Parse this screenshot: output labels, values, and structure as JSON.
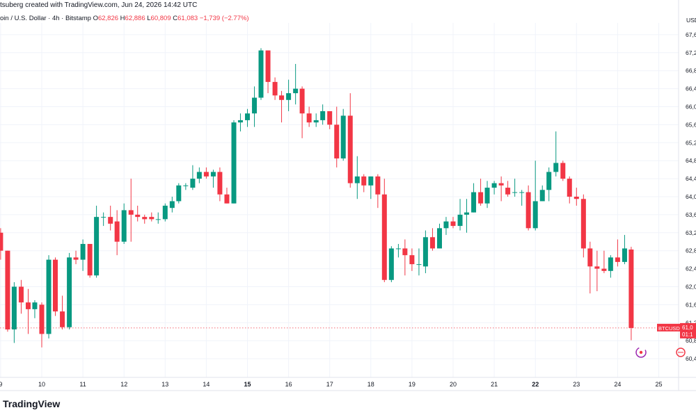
{
  "header": {
    "created_line": "tsuberg created with TradingView.com, Jun 24, 2026 14:42 UTC",
    "symbol_line": "oin / U.S. Dollar · 4h · Bitstamp",
    "o_label": "O",
    "o_value": "62,826",
    "h_label": "H",
    "h_value": "62,886",
    "l_label": "L",
    "l_value": "60,809",
    "c_label": "C",
    "c_value": "61,083",
    "change": "−1,739 (−2.77%)"
  },
  "axis": {
    "currency": "USD"
  },
  "price_tag": {
    "symbol": "BTCUSD",
    "price": "61,0",
    "countdown": "01:1"
  },
  "branding": {
    "logo_text": "TradingView"
  },
  "colors": {
    "up": "#089981",
    "down": "#f23645",
    "grid": "#f0f3fa",
    "text": "#131722"
  },
  "icons": [
    "chart-replay-icon",
    "chart-settings-icon"
  ],
  "chart_data": {
    "type": "candlestick",
    "timeframe": "4h",
    "ylim": [
      60200,
      67800
    ],
    "last_price": 61083,
    "y_ticks": [
      "60,4",
      "60,8",
      "61,2",
      "61,6",
      "62,0",
      "62,4",
      "62,8",
      "63,2",
      "63,6",
      "64,0",
      "64,4",
      "64,8",
      "65,2",
      "65,6",
      "66,0",
      "66,4",
      "66,8",
      "67,2",
      "67,6"
    ],
    "y_tick_values": [
      60400,
      60800,
      61200,
      61600,
      62000,
      62400,
      62800,
      63200,
      63600,
      64000,
      64400,
      64800,
      65200,
      65600,
      66000,
      66400,
      66800,
      67200,
      67600
    ],
    "x_ticks": [
      {
        "label": "9",
        "day": 9,
        "bold": false
      },
      {
        "label": "10",
        "day": 10,
        "bold": false
      },
      {
        "label": "11",
        "day": 11,
        "bold": false
      },
      {
        "label": "12",
        "day": 12,
        "bold": false
      },
      {
        "label": "13",
        "day": 13,
        "bold": false
      },
      {
        "label": "14",
        "day": 14,
        "bold": false
      },
      {
        "label": "15",
        "day": 15,
        "bold": true
      },
      {
        "label": "16",
        "day": 16,
        "bold": false
      },
      {
        "label": "17",
        "day": 17,
        "bold": false
      },
      {
        "label": "18",
        "day": 18,
        "bold": false
      },
      {
        "label": "19",
        "day": 19,
        "bold": false
      },
      {
        "label": "20",
        "day": 20,
        "bold": false
      },
      {
        "label": "21",
        "day": 21,
        "bold": false
      },
      {
        "label": "22",
        "day": 22,
        "bold": true
      },
      {
        "label": "23",
        "day": 23,
        "bold": false
      },
      {
        "label": "24",
        "day": 24,
        "bold": false
      },
      {
        "label": "25",
        "day": 25,
        "bold": false
      }
    ],
    "candles": [
      {
        "day": 8.83,
        "o": 62850,
        "h": 63250,
        "l": 62700,
        "c": 63100
      },
      {
        "day": 9.0,
        "o": 63200,
        "h": 63300,
        "l": 62600,
        "c": 62800
      },
      {
        "day": 9.17,
        "o": 62800,
        "h": 62800,
        "l": 61000,
        "c": 61050
      },
      {
        "day": 9.33,
        "o": 61050,
        "h": 62100,
        "l": 60750,
        "c": 62000
      },
      {
        "day": 9.5,
        "o": 62000,
        "h": 62150,
        "l": 61400,
        "c": 61650
      },
      {
        "day": 9.67,
        "o": 61650,
        "h": 61950,
        "l": 60950,
        "c": 61500
      },
      {
        "day": 9.83,
        "o": 61500,
        "h": 61700,
        "l": 61300,
        "c": 61650
      },
      {
        "day": 10.0,
        "o": 61600,
        "h": 61650,
        "l": 60650,
        "c": 60950
      },
      {
        "day": 10.17,
        "o": 60950,
        "h": 62700,
        "l": 60850,
        "c": 62600
      },
      {
        "day": 10.33,
        "o": 62600,
        "h": 62650,
        "l": 61350,
        "c": 61450
      },
      {
        "day": 10.5,
        "o": 61450,
        "h": 61800,
        "l": 61050,
        "c": 61100
      },
      {
        "day": 10.67,
        "o": 61100,
        "h": 62750,
        "l": 61050,
        "c": 62650
      },
      {
        "day": 10.83,
        "o": 62650,
        "h": 62800,
        "l": 62500,
        "c": 62600
      },
      {
        "day": 11.0,
        "o": 62600,
        "h": 63050,
        "l": 62350,
        "c": 62950
      },
      {
        "day": 11.17,
        "o": 62950,
        "h": 62950,
        "l": 62200,
        "c": 62250
      },
      {
        "day": 11.33,
        "o": 62250,
        "h": 63800,
        "l": 62200,
        "c": 63550
      },
      {
        "day": 11.5,
        "o": 63550,
        "h": 63650,
        "l": 63350,
        "c": 63550
      },
      {
        "day": 11.67,
        "o": 63550,
        "h": 63800,
        "l": 63250,
        "c": 63400
      },
      {
        "day": 11.83,
        "o": 63450,
        "h": 63700,
        "l": 62700,
        "c": 63000
      },
      {
        "day": 12.0,
        "o": 63000,
        "h": 63850,
        "l": 62950,
        "c": 63700
      },
      {
        "day": 12.17,
        "o": 63700,
        "h": 64400,
        "l": 63000,
        "c": 63600
      },
      {
        "day": 12.33,
        "o": 63600,
        "h": 63800,
        "l": 63450,
        "c": 63550
      },
      {
        "day": 12.5,
        "o": 63550,
        "h": 63600,
        "l": 63400,
        "c": 63500
      },
      {
        "day": 12.67,
        "o": 63550,
        "h": 63650,
        "l": 63450,
        "c": 63500
      },
      {
        "day": 12.83,
        "o": 63500,
        "h": 63650,
        "l": 63400,
        "c": 63500
      },
      {
        "day": 13.0,
        "o": 63500,
        "h": 63850,
        "l": 63450,
        "c": 63800
      },
      {
        "day": 13.17,
        "o": 63750,
        "h": 64000,
        "l": 63650,
        "c": 63900
      },
      {
        "day": 13.33,
        "o": 63900,
        "h": 64300,
        "l": 63850,
        "c": 64250
      },
      {
        "day": 13.5,
        "o": 64250,
        "h": 64300,
        "l": 64150,
        "c": 64250
      },
      {
        "day": 13.67,
        "o": 64200,
        "h": 64700,
        "l": 64150,
        "c": 64400
      },
      {
        "day": 13.83,
        "o": 64400,
        "h": 64650,
        "l": 64300,
        "c": 64550
      },
      {
        "day": 14.0,
        "o": 64550,
        "h": 64650,
        "l": 64400,
        "c": 64450
      },
      {
        "day": 14.17,
        "o": 64450,
        "h": 64600,
        "l": 64200,
        "c": 64550
      },
      {
        "day": 14.33,
        "o": 64550,
        "h": 64650,
        "l": 63900,
        "c": 64050
      },
      {
        "day": 14.5,
        "o": 64050,
        "h": 64200,
        "l": 63850,
        "c": 63850
      },
      {
        "day": 14.67,
        "o": 63850,
        "h": 65700,
        "l": 63850,
        "c": 65650
      },
      {
        "day": 14.83,
        "o": 65650,
        "h": 65850,
        "l": 65450,
        "c": 65700
      },
      {
        "day": 15.0,
        "o": 65700,
        "h": 65950,
        "l": 65550,
        "c": 65850
      },
      {
        "day": 15.17,
        "o": 65850,
        "h": 66450,
        "l": 65550,
        "c": 66200
      },
      {
        "day": 15.33,
        "o": 66200,
        "h": 67300,
        "l": 66150,
        "c": 67250
      },
      {
        "day": 15.5,
        "o": 67250,
        "h": 67250,
        "l": 66300,
        "c": 66550
      },
      {
        "day": 15.67,
        "o": 66550,
        "h": 66650,
        "l": 66150,
        "c": 66250
      },
      {
        "day": 15.83,
        "o": 66250,
        "h": 66350,
        "l": 65650,
        "c": 66150
      },
      {
        "day": 16.0,
        "o": 66150,
        "h": 66600,
        "l": 65900,
        "c": 66300
      },
      {
        "day": 16.17,
        "o": 66300,
        "h": 66950,
        "l": 66050,
        "c": 66400
      },
      {
        "day": 16.33,
        "o": 66400,
        "h": 66450,
        "l": 65300,
        "c": 65850
      },
      {
        "day": 16.5,
        "o": 65850,
        "h": 66000,
        "l": 65550,
        "c": 65650
      },
      {
        "day": 16.67,
        "o": 65650,
        "h": 65850,
        "l": 65550,
        "c": 65700
      },
      {
        "day": 16.83,
        "o": 65700,
        "h": 66050,
        "l": 65600,
        "c": 65900
      },
      {
        "day": 17.0,
        "o": 65900,
        "h": 65900,
        "l": 65500,
        "c": 65600
      },
      {
        "day": 17.17,
        "o": 65600,
        "h": 66000,
        "l": 64650,
        "c": 64850
      },
      {
        "day": 17.33,
        "o": 64850,
        "h": 65950,
        "l": 64800,
        "c": 65800
      },
      {
        "day": 17.5,
        "o": 65800,
        "h": 66300,
        "l": 64200,
        "c": 64300
      },
      {
        "day": 17.67,
        "o": 64300,
        "h": 64900,
        "l": 63950,
        "c": 64450
      },
      {
        "day": 17.83,
        "o": 64450,
        "h": 64500,
        "l": 64100,
        "c": 64250
      },
      {
        "day": 18.0,
        "o": 64250,
        "h": 64450,
        "l": 63950,
        "c": 64450
      },
      {
        "day": 18.17,
        "o": 64450,
        "h": 64500,
        "l": 63750,
        "c": 64050
      },
      {
        "day": 18.33,
        "o": 64050,
        "h": 64400,
        "l": 62100,
        "c": 62150
      },
      {
        "day": 18.5,
        "o": 62150,
        "h": 62900,
        "l": 62100,
        "c": 62850
      },
      {
        "day": 18.67,
        "o": 62850,
        "h": 62950,
        "l": 62650,
        "c": 62850
      },
      {
        "day": 18.83,
        "o": 62850,
        "h": 63050,
        "l": 62250,
        "c": 62700
      },
      {
        "day": 19.0,
        "o": 62700,
        "h": 62850,
        "l": 62350,
        "c": 62500
      },
      {
        "day": 19.17,
        "o": 62500,
        "h": 62850,
        "l": 62250,
        "c": 62500
      },
      {
        "day": 19.33,
        "o": 62450,
        "h": 63250,
        "l": 62300,
        "c": 63100
      },
      {
        "day": 19.5,
        "o": 63100,
        "h": 63300,
        "l": 62800,
        "c": 62850
      },
      {
        "day": 19.67,
        "o": 62850,
        "h": 63400,
        "l": 62850,
        "c": 63300
      },
      {
        "day": 19.83,
        "o": 63300,
        "h": 63550,
        "l": 63150,
        "c": 63450
      },
      {
        "day": 20.0,
        "o": 63450,
        "h": 63550,
        "l": 63300,
        "c": 63350
      },
      {
        "day": 20.17,
        "o": 63350,
        "h": 63950,
        "l": 63250,
        "c": 63600
      },
      {
        "day": 20.33,
        "o": 63600,
        "h": 63950,
        "l": 63200,
        "c": 63650
      },
      {
        "day": 20.5,
        "o": 63650,
        "h": 64300,
        "l": 63650,
        "c": 64100
      },
      {
        "day": 20.67,
        "o": 64100,
        "h": 64400,
        "l": 63800,
        "c": 63850
      },
      {
        "day": 20.83,
        "o": 63850,
        "h": 64350,
        "l": 63750,
        "c": 64200
      },
      {
        "day": 21.0,
        "o": 64200,
        "h": 64350,
        "l": 64050,
        "c": 64300
      },
      {
        "day": 21.17,
        "o": 64300,
        "h": 64450,
        "l": 63900,
        "c": 64250
      },
      {
        "day": 21.33,
        "o": 64200,
        "h": 64350,
        "l": 64000,
        "c": 64050
      },
      {
        "day": 21.5,
        "o": 64100,
        "h": 64400,
        "l": 64000,
        "c": 64100
      },
      {
        "day": 21.67,
        "o": 64100,
        "h": 64150,
        "l": 63800,
        "c": 64100
      },
      {
        "day": 21.83,
        "o": 64100,
        "h": 64250,
        "l": 63250,
        "c": 63300
      },
      {
        "day": 22.0,
        "o": 63300,
        "h": 64800,
        "l": 63250,
        "c": 63900
      },
      {
        "day": 22.17,
        "o": 63900,
        "h": 64250,
        "l": 63900,
        "c": 64150
      },
      {
        "day": 22.33,
        "o": 64150,
        "h": 64650,
        "l": 63900,
        "c": 64550
      },
      {
        "day": 22.5,
        "o": 64550,
        "h": 65450,
        "l": 64450,
        "c": 64750
      },
      {
        "day": 22.67,
        "o": 64750,
        "h": 64800,
        "l": 64350,
        "c": 64400
      },
      {
        "day": 22.83,
        "o": 64400,
        "h": 64450,
        "l": 63850,
        "c": 64000
      },
      {
        "day": 23.0,
        "o": 64000,
        "h": 64200,
        "l": 63800,
        "c": 63950
      },
      {
        "day": 23.17,
        "o": 63950,
        "h": 64050,
        "l": 62650,
        "c": 62850
      },
      {
        "day": 23.33,
        "o": 62850,
        "h": 63000,
        "l": 61850,
        "c": 62450
      },
      {
        "day": 23.5,
        "o": 62450,
        "h": 62800,
        "l": 61900,
        "c": 62400
      },
      {
        "day": 23.67,
        "o": 62400,
        "h": 62800,
        "l": 62300,
        "c": 62350
      },
      {
        "day": 23.83,
        "o": 62350,
        "h": 62700,
        "l": 62200,
        "c": 62650
      },
      {
        "day": 24.0,
        "o": 62650,
        "h": 63050,
        "l": 62450,
        "c": 62550
      },
      {
        "day": 24.17,
        "o": 62550,
        "h": 63150,
        "l": 62500,
        "c": 62850
      },
      {
        "day": 24.33,
        "o": 62826,
        "h": 62886,
        "l": 60809,
        "c": 61083
      }
    ]
  }
}
